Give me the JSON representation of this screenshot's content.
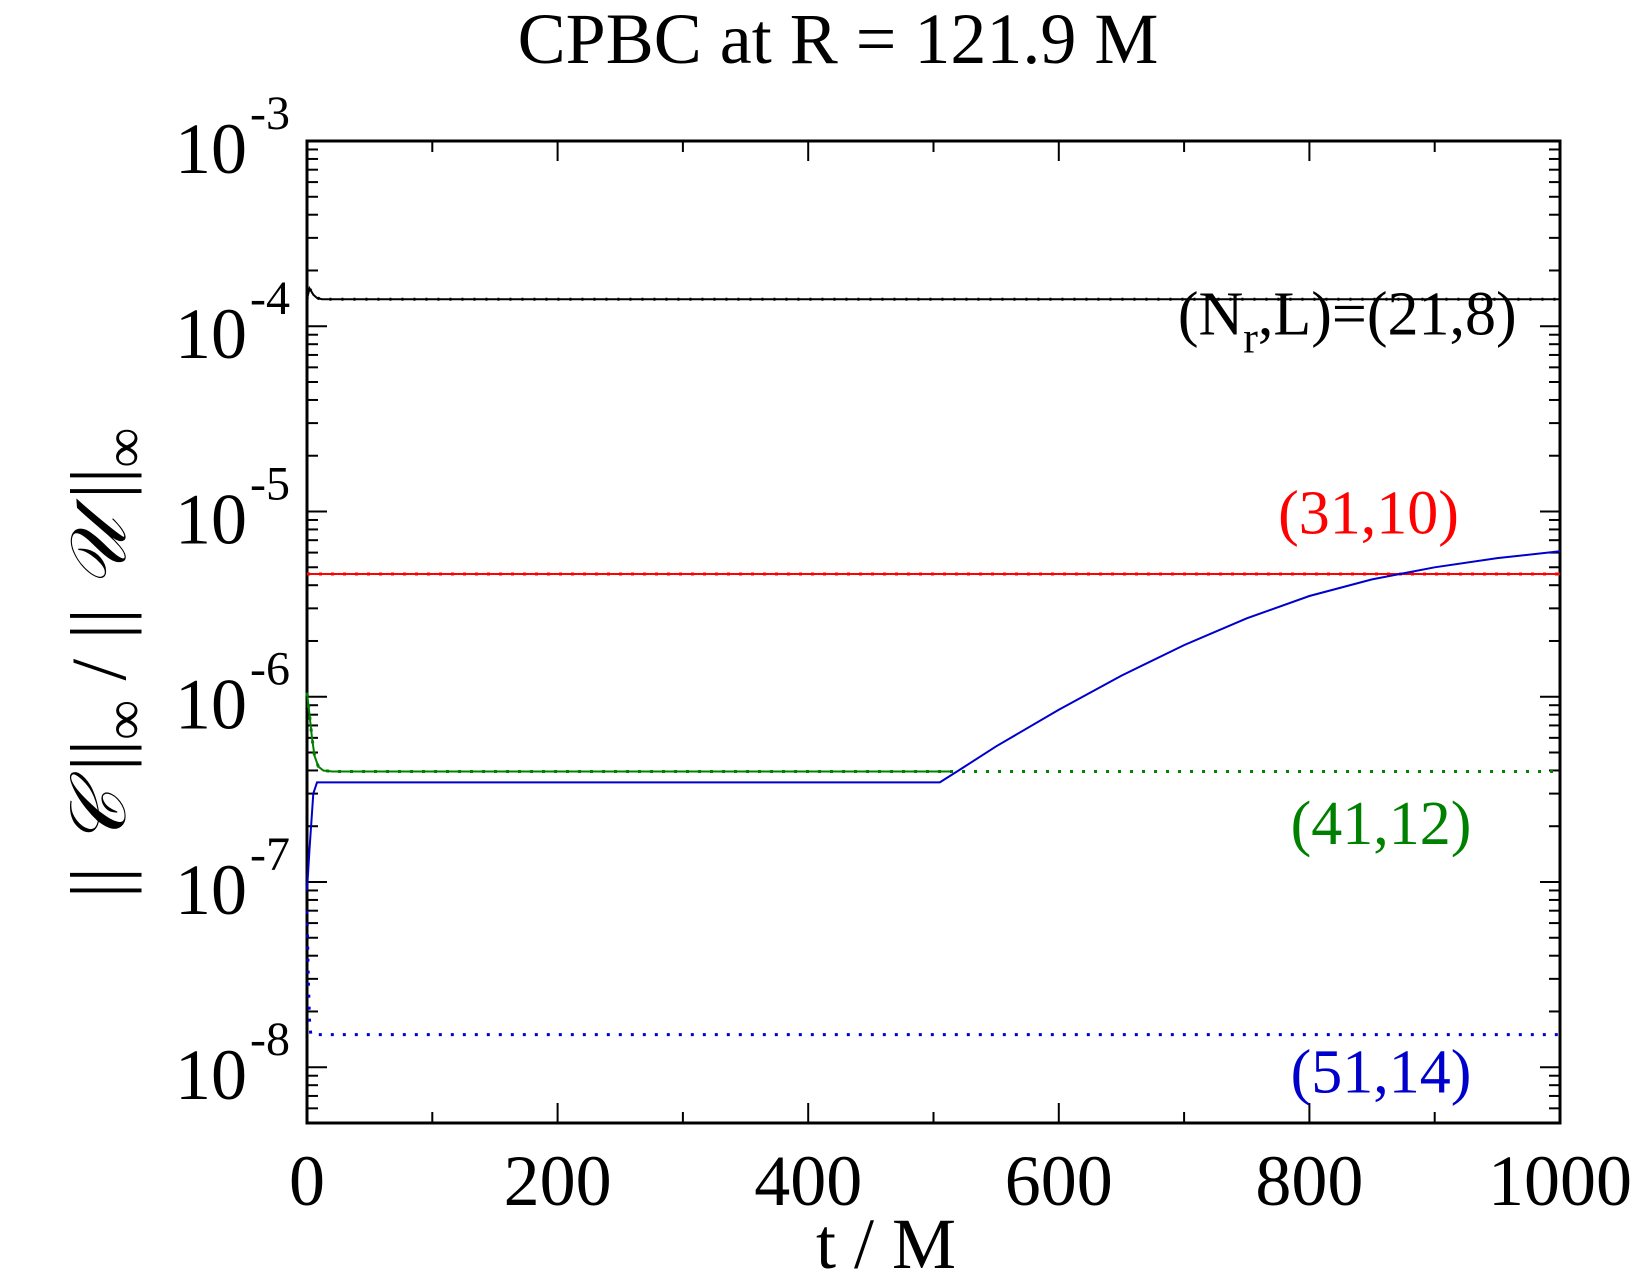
{
  "chart_data": {
    "type": "line",
    "title": "CPBC at R = 121.9 M",
    "xlabel": "t / M",
    "ylabel": "|| 𝒞 ||∞ / ||   𝒰 ||∞",
    "ylabel_parts": [
      "|| ",
      "𝒞",
      " ||",
      "∞",
      " / ||   ",
      "𝒰",
      " ||",
      "∞"
    ],
    "xlim": [
      0,
      1000
    ],
    "ylim": [
      5e-09,
      0.001
    ],
    "yscale": "log",
    "x_ticks": [
      0,
      200,
      400,
      600,
      800,
      1000
    ],
    "x_tick_labels": [
      "0",
      "200",
      "400",
      "600",
      "800",
      "1000"
    ],
    "y_tick_exponents": [
      -8,
      -7,
      -6,
      -5,
      -4,
      -3
    ],
    "y_tick_base": "10",
    "y_tick_sups": [
      "-8",
      "-7",
      "-6",
      "-5",
      "-4",
      "-3"
    ],
    "grid": false,
    "series": [
      {
        "label": "(N",
        "label_sub": "r",
        "label_rest": ",L)=(21,8)",
        "color": "#000000",
        "style": "solid",
        "x": [
          0,
          2,
          5,
          8,
          12,
          1000
        ],
        "y": [
          0.00014,
          0.00016,
          0.000148,
          0.000142,
          0.00014,
          0.00014
        ]
      },
      {
        "label": "(31,10)",
        "color": "#ff0000",
        "style": "solid-then-dotted",
        "solid_until": 1000,
        "x": [
          0,
          1000
        ],
        "y": [
          4.6e-06,
          4.6e-06
        ]
      },
      {
        "label": "(41,12)",
        "color": "#008000",
        "style": "solid-then-dotted",
        "solid_until": 515,
        "x": [
          0,
          2,
          4,
          6,
          9,
          13,
          20,
          515,
          1000
        ],
        "y": [
          1.05e-06,
          8e-07,
          6e-07,
          4.8e-07,
          4.2e-07,
          4e-07,
          3.95e-07,
          3.95e-07,
          3.95e-07
        ]
      },
      {
        "label": "(51,14)",
        "color": "#0000cc",
        "style": "solid",
        "x": [
          0,
          2,
          5,
          8,
          505,
          520,
          550,
          600,
          650,
          700,
          750,
          800,
          850,
          900,
          950,
          1000
        ],
        "y": [
          9e-08,
          1.5e-07,
          3e-07,
          3.45e-07,
          3.45e-07,
          4e-07,
          5.4e-07,
          8.5e-07,
          1.3e-06,
          1.9e-06,
          2.65e-06,
          3.5e-06,
          4.3e-06,
          5e-06,
          5.6e-06,
          6.1e-06
        ]
      },
      {
        "label": "",
        "color": "#0000cc",
        "style": "dotted",
        "x": [
          0,
          1,
          2,
          3,
          1000
        ],
        "y": [
          7e-08,
          3e-08,
          1.8e-08,
          1.5e-08,
          1.5e-08
        ]
      }
    ],
    "annotations": [
      {
        "series": 0,
        "text_parts": [
          "(N",
          "r",
          ",L)=(21,8)"
        ],
        "color": "#000000",
        "at_x": 695,
        "at_y": 9e-05
      },
      {
        "series": 1,
        "text": "(31,10)",
        "color": "#ff0000",
        "at_x": 775,
        "at_y": 7.6e-06
      },
      {
        "series": 2,
        "text": "(41,12)",
        "color": "#008000",
        "at_x": 785,
        "at_y": 1.6e-07
      },
      {
        "series": 3,
        "text": "(51,14)",
        "color": "#0000cc",
        "at_x": 785,
        "at_y": 7.3e-09
      }
    ]
  }
}
